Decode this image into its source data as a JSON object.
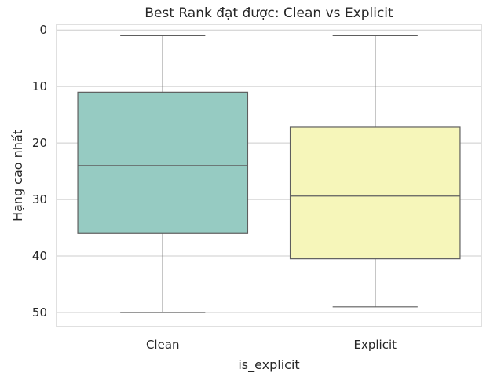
{
  "chart_data": {
    "type": "box",
    "title": "Best Rank đạt được: Clean vs Explicit",
    "xlabel": "is_explicit",
    "ylabel": "Hạng cao nhất",
    "categories": [
      "Clean",
      "Explicit"
    ],
    "y_axis": {
      "inverted": true,
      "ylim": [
        -1,
        52.5
      ],
      "ticks": [
        0,
        10,
        20,
        30,
        40,
        50
      ]
    },
    "grid": true,
    "boxes": [
      {
        "category": "Clean",
        "whisker_low": 1,
        "q1": 11,
        "median": 24,
        "q3": 36,
        "whisker_high": 50,
        "color": "#96CBC2"
      },
      {
        "category": "Explicit",
        "whisker_low": 1,
        "q1": 17.2,
        "median": 29.4,
        "q3": 40.5,
        "whisker_high": 49,
        "color": "#F6F6BA"
      }
    ]
  }
}
